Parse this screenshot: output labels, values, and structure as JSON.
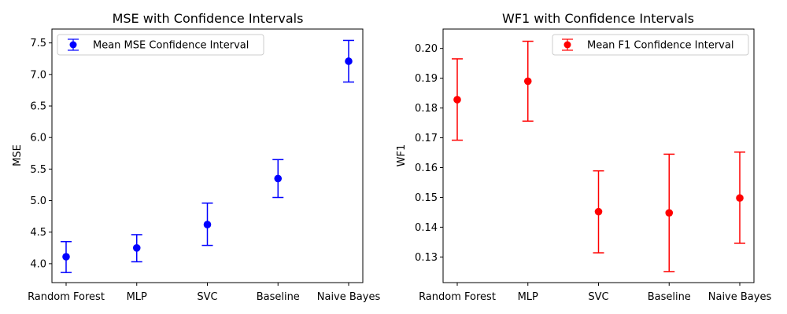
{
  "chart_data": [
    {
      "type": "scatter",
      "title": "MSE with Confidence Intervals",
      "xlabel": "",
      "ylabel": "MSE",
      "categories": [
        "Random Forest",
        "MLP",
        "SVC",
        "Baseline",
        "Naive Bayes"
      ],
      "ylim": [
        3.7,
        7.72
      ],
      "yticks": [
        "4.0",
        "4.5",
        "5.0",
        "5.5",
        "6.0",
        "6.5",
        "7.0",
        "7.5"
      ],
      "legend": "top-left",
      "series": [
        {
          "name": "Mean MSE Confidence Interval",
          "color": "#0000ff",
          "values": [
            4.11,
            4.25,
            4.62,
            5.35,
            7.21
          ],
          "lower": [
            3.86,
            4.03,
            4.29,
            5.05,
            6.88
          ],
          "upper": [
            4.35,
            4.46,
            4.96,
            5.65,
            7.54
          ]
        }
      ]
    },
    {
      "type": "scatter",
      "title": "WF1 with Confidence Intervals",
      "xlabel": "",
      "ylabel": "WF1",
      "categories": [
        "Random Forest",
        "MLP",
        "SVC",
        "Baseline",
        "Naive Bayes"
      ],
      "ylim": [
        0.1214,
        0.2065
      ],
      "yticks": [
        "0.13",
        "0.14",
        "0.15",
        "0.16",
        "0.17",
        "0.18",
        "0.19",
        "0.20"
      ],
      "legend": "top-right",
      "series": [
        {
          "name": "Mean F1 Confidence Interval",
          "color": "#ff0000",
          "values": [
            0.1828,
            0.189,
            0.1452,
            0.1448,
            0.1498
          ],
          "lower": [
            0.1692,
            0.1756,
            0.1314,
            0.1251,
            0.1346
          ],
          "upper": [
            0.1965,
            0.2024,
            0.1589,
            0.1645,
            0.1652
          ]
        }
      ]
    }
  ]
}
